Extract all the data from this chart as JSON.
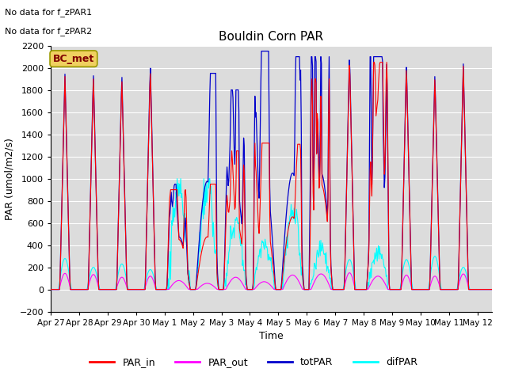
{
  "title": "Bouldin Corn PAR",
  "ylabel": "PAR (umol/m2/s)",
  "xlabel": "Time",
  "ylim": [
    -200,
    2200
  ],
  "yticks": [
    -200,
    0,
    200,
    400,
    600,
    800,
    1000,
    1200,
    1400,
    1600,
    1800,
    2000,
    2200
  ],
  "annotation1": "No data for f_zPAR1",
  "annotation2": "No data for f_zPAR2",
  "legend_box_label": "BC_met",
  "legend_box_color": "#f0d060",
  "legend_box_text_color": "#800000",
  "bg_color": "#dcdcdc",
  "colors": {
    "PAR_in": "#ff0000",
    "PAR_out": "#ff00ff",
    "totPAR": "#0000cc",
    "difPAR": "#00ffff"
  },
  "x_tick_labels": [
    "Apr 27",
    "Apr 28",
    "Apr 29",
    "Apr 30",
    "May 1",
    "May 2",
    "May 3",
    "May 4",
    "May 5",
    "May 6",
    "May 7",
    "May 8",
    "May 9",
    "May 10",
    "May 11",
    "May 12"
  ],
  "n_days": 15.5,
  "figsize": [
    6.4,
    4.8
  ],
  "dpi": 100
}
